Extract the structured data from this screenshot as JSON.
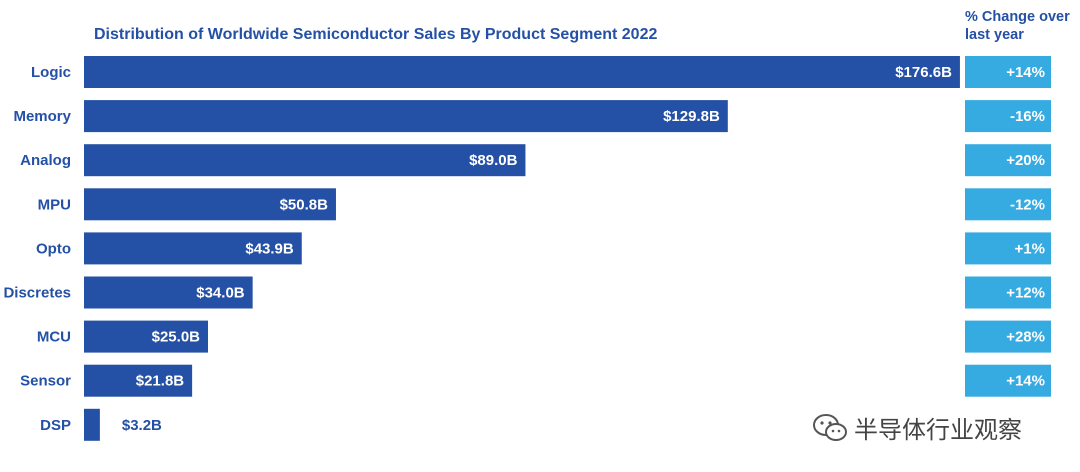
{
  "chart_data": {
    "type": "bar",
    "orientation": "horizontal",
    "title": "Distribution of Worldwide Semiconductor Sales By Product Segment 2022",
    "change_header": "% Change over last year",
    "categories": [
      "Logic",
      "Memory",
      "Analog",
      "MPU",
      "Opto",
      "Discretes",
      "MCU",
      "Sensor",
      "DSP"
    ],
    "values": [
      176.6,
      129.8,
      89.0,
      50.8,
      43.9,
      34.0,
      25.0,
      21.8,
      3.2
    ],
    "value_labels": [
      "$176.6B",
      "$129.8B",
      "$89.0B",
      "$50.8B",
      "$43.9B",
      "$34.0B",
      "$25.0B",
      "$21.8B",
      "$3.2B"
    ],
    "change_labels": [
      "+14%",
      "-16%",
      "+20%",
      "-12%",
      "+1%",
      "+12%",
      "+28%",
      "+14%",
      ""
    ],
    "unit": "$B",
    "colors": {
      "bar": "#2451a5",
      "change_box": "#35abe2",
      "text": "#2451a5"
    }
  },
  "watermark": {
    "text": "半导体行业观察",
    "icon": "wechat-icon"
  }
}
